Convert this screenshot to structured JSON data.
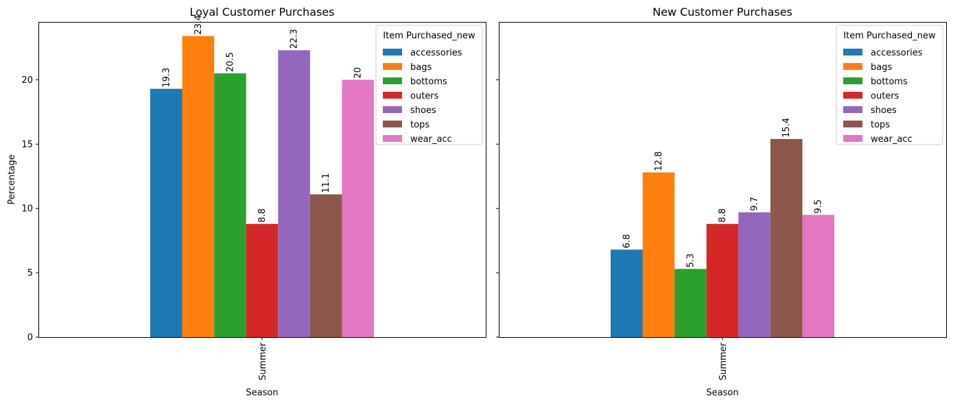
{
  "chart_data": [
    {
      "type": "bar",
      "title": "Loyal Customer Purchases",
      "xlabel": "Season",
      "ylabel": "Percentage",
      "categories": [
        "Summer"
      ],
      "ylim": [
        0,
        24.5
      ],
      "yticks": [
        0,
        5,
        10,
        15,
        20
      ],
      "legend": {
        "title": "Item Purchased_new",
        "placement": "top-right"
      },
      "series": [
        {
          "name": "accessories",
          "values": [
            19.3
          ],
          "label": "19.3"
        },
        {
          "name": "bags",
          "values": [
            23.4
          ],
          "label": "23.4"
        },
        {
          "name": "bottoms",
          "values": [
            20.5
          ],
          "label": "20.5"
        },
        {
          "name": "outers",
          "values": [
            8.8
          ],
          "label": "8.8"
        },
        {
          "name": "shoes",
          "values": [
            22.3
          ],
          "label": "22.3"
        },
        {
          "name": "tops",
          "values": [
            11.1
          ],
          "label": "11.1"
        },
        {
          "name": "wear_acc",
          "values": [
            20.0
          ],
          "label": "20"
        }
      ]
    },
    {
      "type": "bar",
      "title": "New Customer Purchases",
      "xlabel": "Season",
      "ylabel": "",
      "categories": [
        "Summer"
      ],
      "ylim": [
        0,
        24.5
      ],
      "yticks": [
        0,
        5,
        10,
        15,
        20
      ],
      "legend": {
        "title": "Item Purchased_new",
        "placement": "top-right"
      },
      "series": [
        {
          "name": "accessories",
          "values": [
            6.8
          ],
          "label": "6.8"
        },
        {
          "name": "bags",
          "values": [
            12.8
          ],
          "label": "12.8"
        },
        {
          "name": "bottoms",
          "values": [
            5.3
          ],
          "label": "5.3"
        },
        {
          "name": "outers",
          "values": [
            8.8
          ],
          "label": "8.8"
        },
        {
          "name": "shoes",
          "values": [
            9.7
          ],
          "label": "9.7"
        },
        {
          "name": "tops",
          "values": [
            15.4
          ],
          "label": "15.4"
        },
        {
          "name": "wear_acc",
          "values": [
            9.5
          ],
          "label": "9.5"
        }
      ]
    }
  ],
  "colors": {
    "accessories": "#1f77b4",
    "bags": "#ff7f0e",
    "bottoms": "#2ca02c",
    "outers": "#d62728",
    "shoes": "#9467bd",
    "tops": "#8c564b",
    "wear_acc": "#e377c2"
  }
}
